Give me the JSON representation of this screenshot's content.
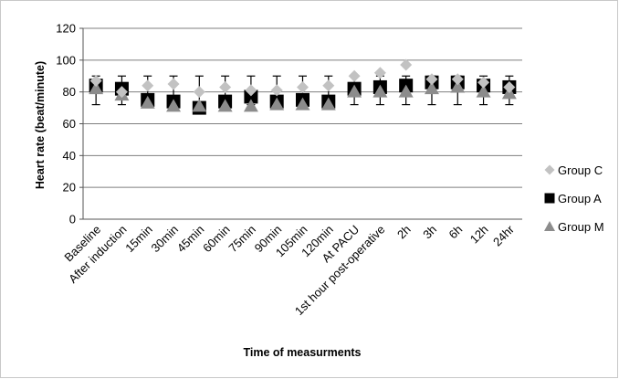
{
  "chart_data": {
    "type": "scatter",
    "xlabel": "Time of measurments",
    "ylabel": "Heart rate (beat/minute)",
    "ylim": [
      0,
      120
    ],
    "yticks": [
      0,
      20,
      40,
      60,
      80,
      100,
      120
    ],
    "grid": true,
    "legend_position": "right",
    "categories": [
      "Baseline",
      "After induction",
      "15min",
      "30min",
      "45min",
      "60min",
      "75min",
      "90min",
      "105min",
      "120min",
      "At PACU",
      "1st hour post-operative",
      "2h",
      "3h",
      "6h",
      "12h",
      "24hr"
    ],
    "error_bars": {
      "upper": [
        90,
        90,
        90,
        90,
        90,
        90,
        90,
        90,
        90,
        90,
        90,
        90,
        90,
        90,
        90,
        90,
        90
      ],
      "lower": [
        72,
        72,
        72,
        72,
        72,
        72,
        72,
        72,
        72,
        72,
        72,
        72,
        72,
        72,
        72,
        72,
        72
      ]
    },
    "series": [
      {
        "name": "Group C",
        "marker": "diamond",
        "color": "#c2c2c2",
        "values": [
          87,
          80,
          84,
          85,
          80,
          83,
          81,
          81,
          83,
          84,
          90,
          92,
          97,
          88,
          88,
          86,
          83
        ]
      },
      {
        "name": "Group A",
        "marker": "square",
        "color": "#000000",
        "values": [
          84,
          82,
          75,
          74,
          70,
          74,
          77,
          74,
          75,
          74,
          82,
          83,
          84,
          86,
          86,
          84,
          83
        ]
      },
      {
        "name": "Group M",
        "marker": "triangle",
        "color": "#8c8c8c",
        "values": [
          82,
          78,
          73,
          71,
          71,
          71,
          71,
          72,
          72,
          72,
          80,
          80,
          80,
          82,
          83,
          80,
          79
        ]
      }
    ]
  }
}
